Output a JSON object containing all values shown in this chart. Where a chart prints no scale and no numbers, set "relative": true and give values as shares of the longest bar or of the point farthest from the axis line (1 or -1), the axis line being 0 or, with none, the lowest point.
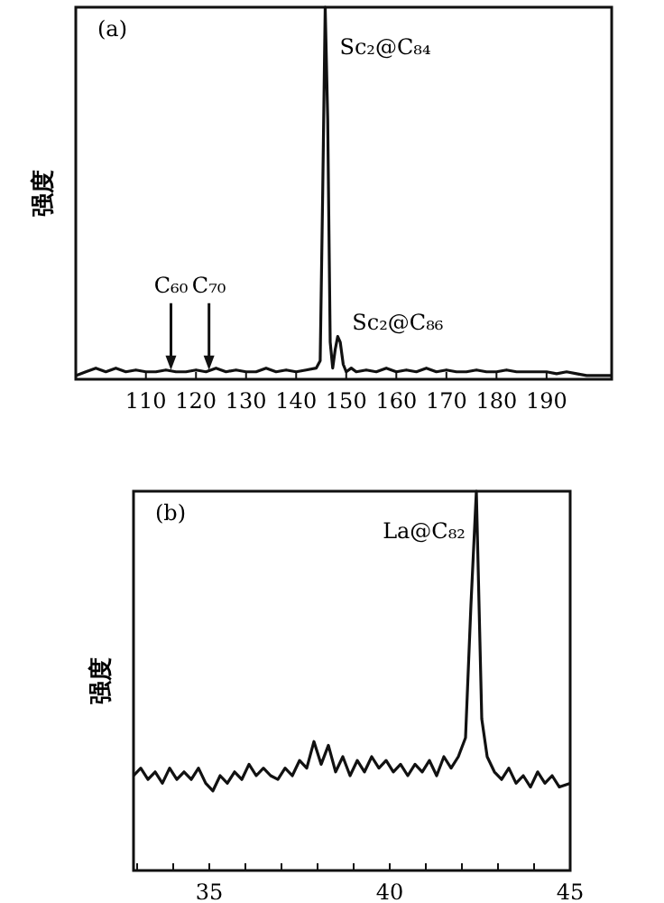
{
  "chart_data": [
    {
      "type": "line",
      "title": "(a)",
      "ylabel": "强度",
      "relative": true,
      "color": "#111111",
      "xlim": [
        96,
        203
      ],
      "xticks": [
        110,
        120,
        130,
        140,
        150,
        160,
        170,
        180,
        190
      ],
      "x": [
        96,
        98,
        100,
        102,
        104,
        106,
        108,
        110,
        112,
        114,
        116,
        118,
        120,
        122,
        124,
        126,
        128,
        130,
        132,
        134,
        136,
        138,
        140,
        142,
        144,
        144.8,
        145.3,
        145.8,
        146.3,
        146.8,
        147.3,
        147.8,
        148.3,
        148.8,
        149.4,
        150,
        151,
        152,
        154,
        156,
        158,
        160,
        162,
        164,
        166,
        168,
        170,
        172,
        174,
        176,
        178,
        180,
        182,
        184,
        186,
        188,
        190,
        192,
        194,
        196,
        198,
        200,
        202,
        203
      ],
      "values": [
        0.01,
        0.02,
        0.03,
        0.02,
        0.03,
        0.02,
        0.025,
        0.02,
        0.02,
        0.025,
        0.02,
        0.02,
        0.025,
        0.02,
        0.03,
        0.02,
        0.025,
        0.02,
        0.02,
        0.03,
        0.02,
        0.025,
        0.02,
        0.025,
        0.03,
        0.05,
        0.5,
        1,
        0.7,
        0.1,
        0.03,
        0.08,
        0.115,
        0.1,
        0.04,
        0.02,
        0.03,
        0.02,
        0.025,
        0.02,
        0.03,
        0.02,
        0.025,
        0.02,
        0.03,
        0.02,
        0.025,
        0.02,
        0.02,
        0.025,
        0.02,
        0.02,
        0.025,
        0.02,
        0.02,
        0.02,
        0.02,
        0.015,
        0.02,
        0.015,
        0.01,
        0.01,
        0.01,
        0.01
      ],
      "annotations": [
        {
          "text": "C₆₀",
          "x": 115,
          "y": 0.02
        },
        {
          "text": "C₇₀",
          "x": 122.6,
          "y": 0.02
        },
        {
          "text": "Sc₂@C₈₄",
          "x": 145.8,
          "y": 1
        },
        {
          "text": "Sc₂@C₈₆",
          "x": 148.3,
          "y": 0.115
        }
      ]
    },
    {
      "type": "line",
      "title": "(b)",
      "ylabel": "强度",
      "relative": true,
      "color": "#111111",
      "xlim": [
        32.9,
        45
      ],
      "xticks": [
        {
          "value": 33,
          "label": null
        },
        {
          "value": 34,
          "label": null
        },
        35,
        {
          "value": 36,
          "label": null
        },
        {
          "value": 37,
          "label": null
        },
        {
          "value": 38,
          "label": null
        },
        {
          "value": 39,
          "label": null
        },
        40,
        {
          "value": 41,
          "label": null
        },
        {
          "value": 42,
          "label": null
        },
        {
          "value": 43,
          "label": null
        },
        {
          "value": 44,
          "label": null
        },
        45
      ],
      "x": [
        32.9,
        33.1,
        33.3,
        33.5,
        33.7,
        33.9,
        34.1,
        34.3,
        34.5,
        34.7,
        34.9,
        35.1,
        35.3,
        35.5,
        35.7,
        35.9,
        36.1,
        36.3,
        36.5,
        36.7,
        36.9,
        37.1,
        37.3,
        37.5,
        37.7,
        37.9,
        38.1,
        38.3,
        38.5,
        38.7,
        38.9,
        39.1,
        39.3,
        39.5,
        39.7,
        39.9,
        40.1,
        40.3,
        40.5,
        40.7,
        40.9,
        41.1,
        41.3,
        41.5,
        41.7,
        41.9,
        42.1,
        42.25,
        42.4,
        42.55,
        42.7,
        42.9,
        43.1,
        43.3,
        43.5,
        43.7,
        43.9,
        44.1,
        44.3,
        44.5,
        44.7,
        45
      ],
      "values": [
        0.25,
        0.27,
        0.24,
        0.26,
        0.23,
        0.27,
        0.24,
        0.26,
        0.24,
        0.27,
        0.23,
        0.21,
        0.25,
        0.23,
        0.26,
        0.24,
        0.28,
        0.25,
        0.27,
        0.25,
        0.24,
        0.27,
        0.25,
        0.29,
        0.27,
        0.34,
        0.28,
        0.33,
        0.26,
        0.3,
        0.25,
        0.29,
        0.26,
        0.3,
        0.27,
        0.29,
        0.26,
        0.28,
        0.25,
        0.28,
        0.26,
        0.29,
        0.25,
        0.3,
        0.27,
        0.3,
        0.35,
        0.7,
        1,
        0.4,
        0.3,
        0.26,
        0.24,
        0.27,
        0.23,
        0.25,
        0.22,
        0.26,
        0.23,
        0.25,
        0.22,
        0.23
      ],
      "annotations": [
        {
          "text": "La@C₈₂",
          "x": 42.4,
          "y": 1
        }
      ]
    }
  ]
}
